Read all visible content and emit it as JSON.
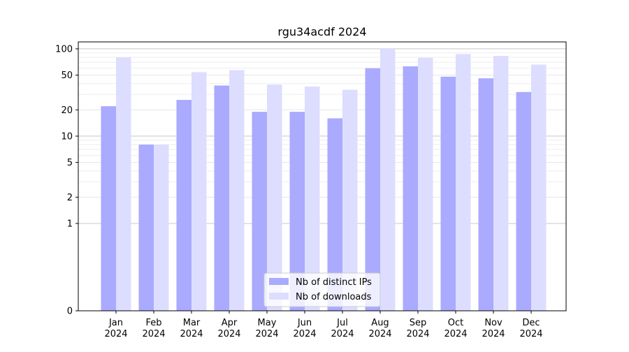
{
  "chart_data": {
    "type": "bar",
    "title": "rgu34acdf 2024",
    "xlabel": "",
    "ylabel": "",
    "y_scale": "symlog",
    "ylim": [
      0,
      120
    ],
    "yticks": [
      0,
      1,
      2,
      5,
      10,
      20,
      50,
      100
    ],
    "ytick_labels": [
      "0",
      "1",
      "2",
      "5",
      "10",
      "20",
      "50",
      "100"
    ],
    "grid": true,
    "legend_position": "bottom-center",
    "categories": [
      "Jan\n2024",
      "Feb\n2024",
      "Mar\n2024",
      "Apr\n2024",
      "May\n2024",
      "Jun\n2024",
      "Jul\n2024",
      "Aug\n2024",
      "Sep\n2024",
      "Oct\n2024",
      "Nov\n2024",
      "Dec\n2024"
    ],
    "series": [
      {
        "name": "Nb of distinct IPs",
        "color": "#aaaaff",
        "values": [
          22,
          8,
          26,
          38,
          19,
          19,
          16,
          60,
          63,
          48,
          46,
          32
        ]
      },
      {
        "name": "Nb of downloads",
        "color": "#ddddff",
        "values": [
          80,
          8,
          54,
          57,
          39,
          37,
          34,
          100,
          79,
          87,
          83,
          66
        ]
      }
    ]
  }
}
